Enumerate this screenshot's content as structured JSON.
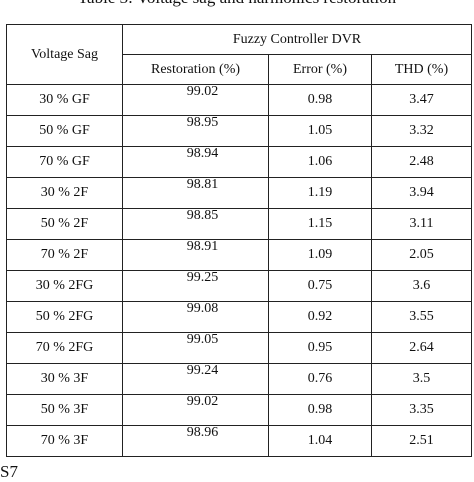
{
  "caption": "Table 3: Voltage sag and harmonics restoration",
  "footer_fragment": "S7",
  "table": {
    "corner_header": "Voltage Sag",
    "group_header": "Fuzzy Controller DVR",
    "columns": [
      "Restoration (%)",
      "Error (%)",
      "THD (%)"
    ],
    "rows": [
      {
        "sag": "30 % GF",
        "restoration": "99.02",
        "error": "0.98",
        "thd": "3.47"
      },
      {
        "sag": "50 % GF",
        "restoration": "98.95",
        "error": "1.05",
        "thd": "3.32"
      },
      {
        "sag": "70 % GF",
        "restoration": "98.94",
        "error": "1.06",
        "thd": "2.48"
      },
      {
        "sag": "30 % 2F",
        "restoration": "98.81",
        "error": "1.19",
        "thd": "3.94"
      },
      {
        "sag": "50 % 2F",
        "restoration": "98.85",
        "error": "1.15",
        "thd": "3.11"
      },
      {
        "sag": "70 % 2F",
        "restoration": "98.91",
        "error": "1.09",
        "thd": "2.05"
      },
      {
        "sag": "30 % 2FG",
        "restoration": "99.25",
        "error": "0.75",
        "thd": "3.6"
      },
      {
        "sag": "50 % 2FG",
        "restoration": "99.08",
        "error": "0.92",
        "thd": "3.55"
      },
      {
        "sag": "70 % 2FG",
        "restoration": "99.05",
        "error": "0.95",
        "thd": "2.64"
      },
      {
        "sag": "30 % 3F",
        "restoration": "99.24",
        "error": "0.76",
        "thd": "3.5"
      },
      {
        "sag": "50 % 3F",
        "restoration": "99.02",
        "error": "0.98",
        "thd": "3.35"
      },
      {
        "sag": "70 % 3F",
        "restoration": "98.96",
        "error": "1.04",
        "thd": "2.51"
      }
    ]
  }
}
